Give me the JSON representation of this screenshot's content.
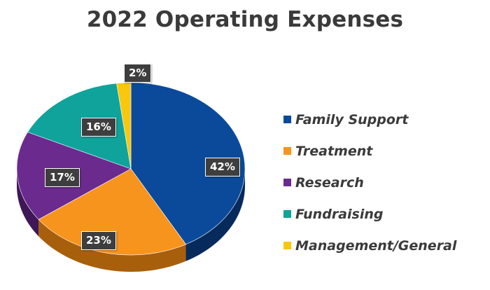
{
  "chart_data": {
    "type": "pie",
    "title": "2022 Operating Expenses",
    "categories": [
      "Family Support",
      "Treatment",
      "Research",
      "Fundraising",
      "Management/General"
    ],
    "values": [
      42,
      23,
      17,
      16,
      2
    ],
    "labels": [
      "42%",
      "23%",
      "17%",
      "16%",
      "2%"
    ],
    "colors": [
      "#0b4a9a",
      "#f7941d",
      "#6a2a8e",
      "#0fa39c",
      "#f9c80e"
    ],
    "shadow_colors": [
      "#062a5c",
      "#a85f0c",
      "#3f1656",
      "#086662",
      "#b58f05"
    ],
    "legend_position": "right",
    "three_d": true
  }
}
